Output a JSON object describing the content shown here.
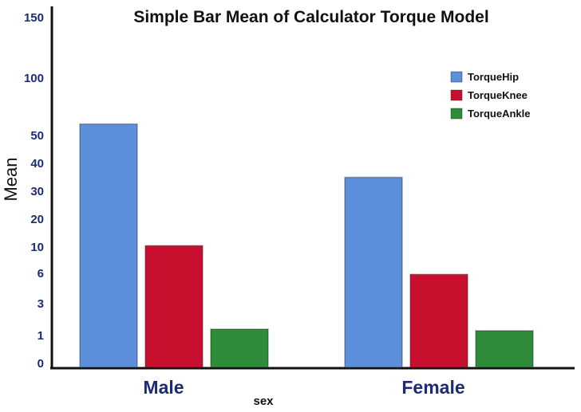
{
  "chart_data": {
    "type": "bar",
    "title": "Simple Bar Mean of Calculator Torque Model",
    "xlabel": "sex",
    "ylabel": "Mean",
    "categories": [
      "Male",
      "Female"
    ],
    "series": [
      {
        "name": "TorqueHip",
        "values": [
          60,
          35
        ],
        "color": "#5b8fd9"
      },
      {
        "name": "TorqueKnee",
        "values": [
          10.5,
          5.9
        ],
        "color": "#c8102e"
      },
      {
        "name": "TorqueAnkle",
        "values": [
          1.4,
          1.3
        ],
        "color": "#2e8b3a"
      }
    ],
    "y_ticks": [
      0,
      1,
      3,
      6,
      10,
      20,
      30,
      40,
      50,
      100,
      150
    ],
    "y_scale": "nonlinear (tick labels unevenly spaced)",
    "ylim": [
      0,
      150
    ],
    "grid": false,
    "legend_position": "top-right"
  }
}
